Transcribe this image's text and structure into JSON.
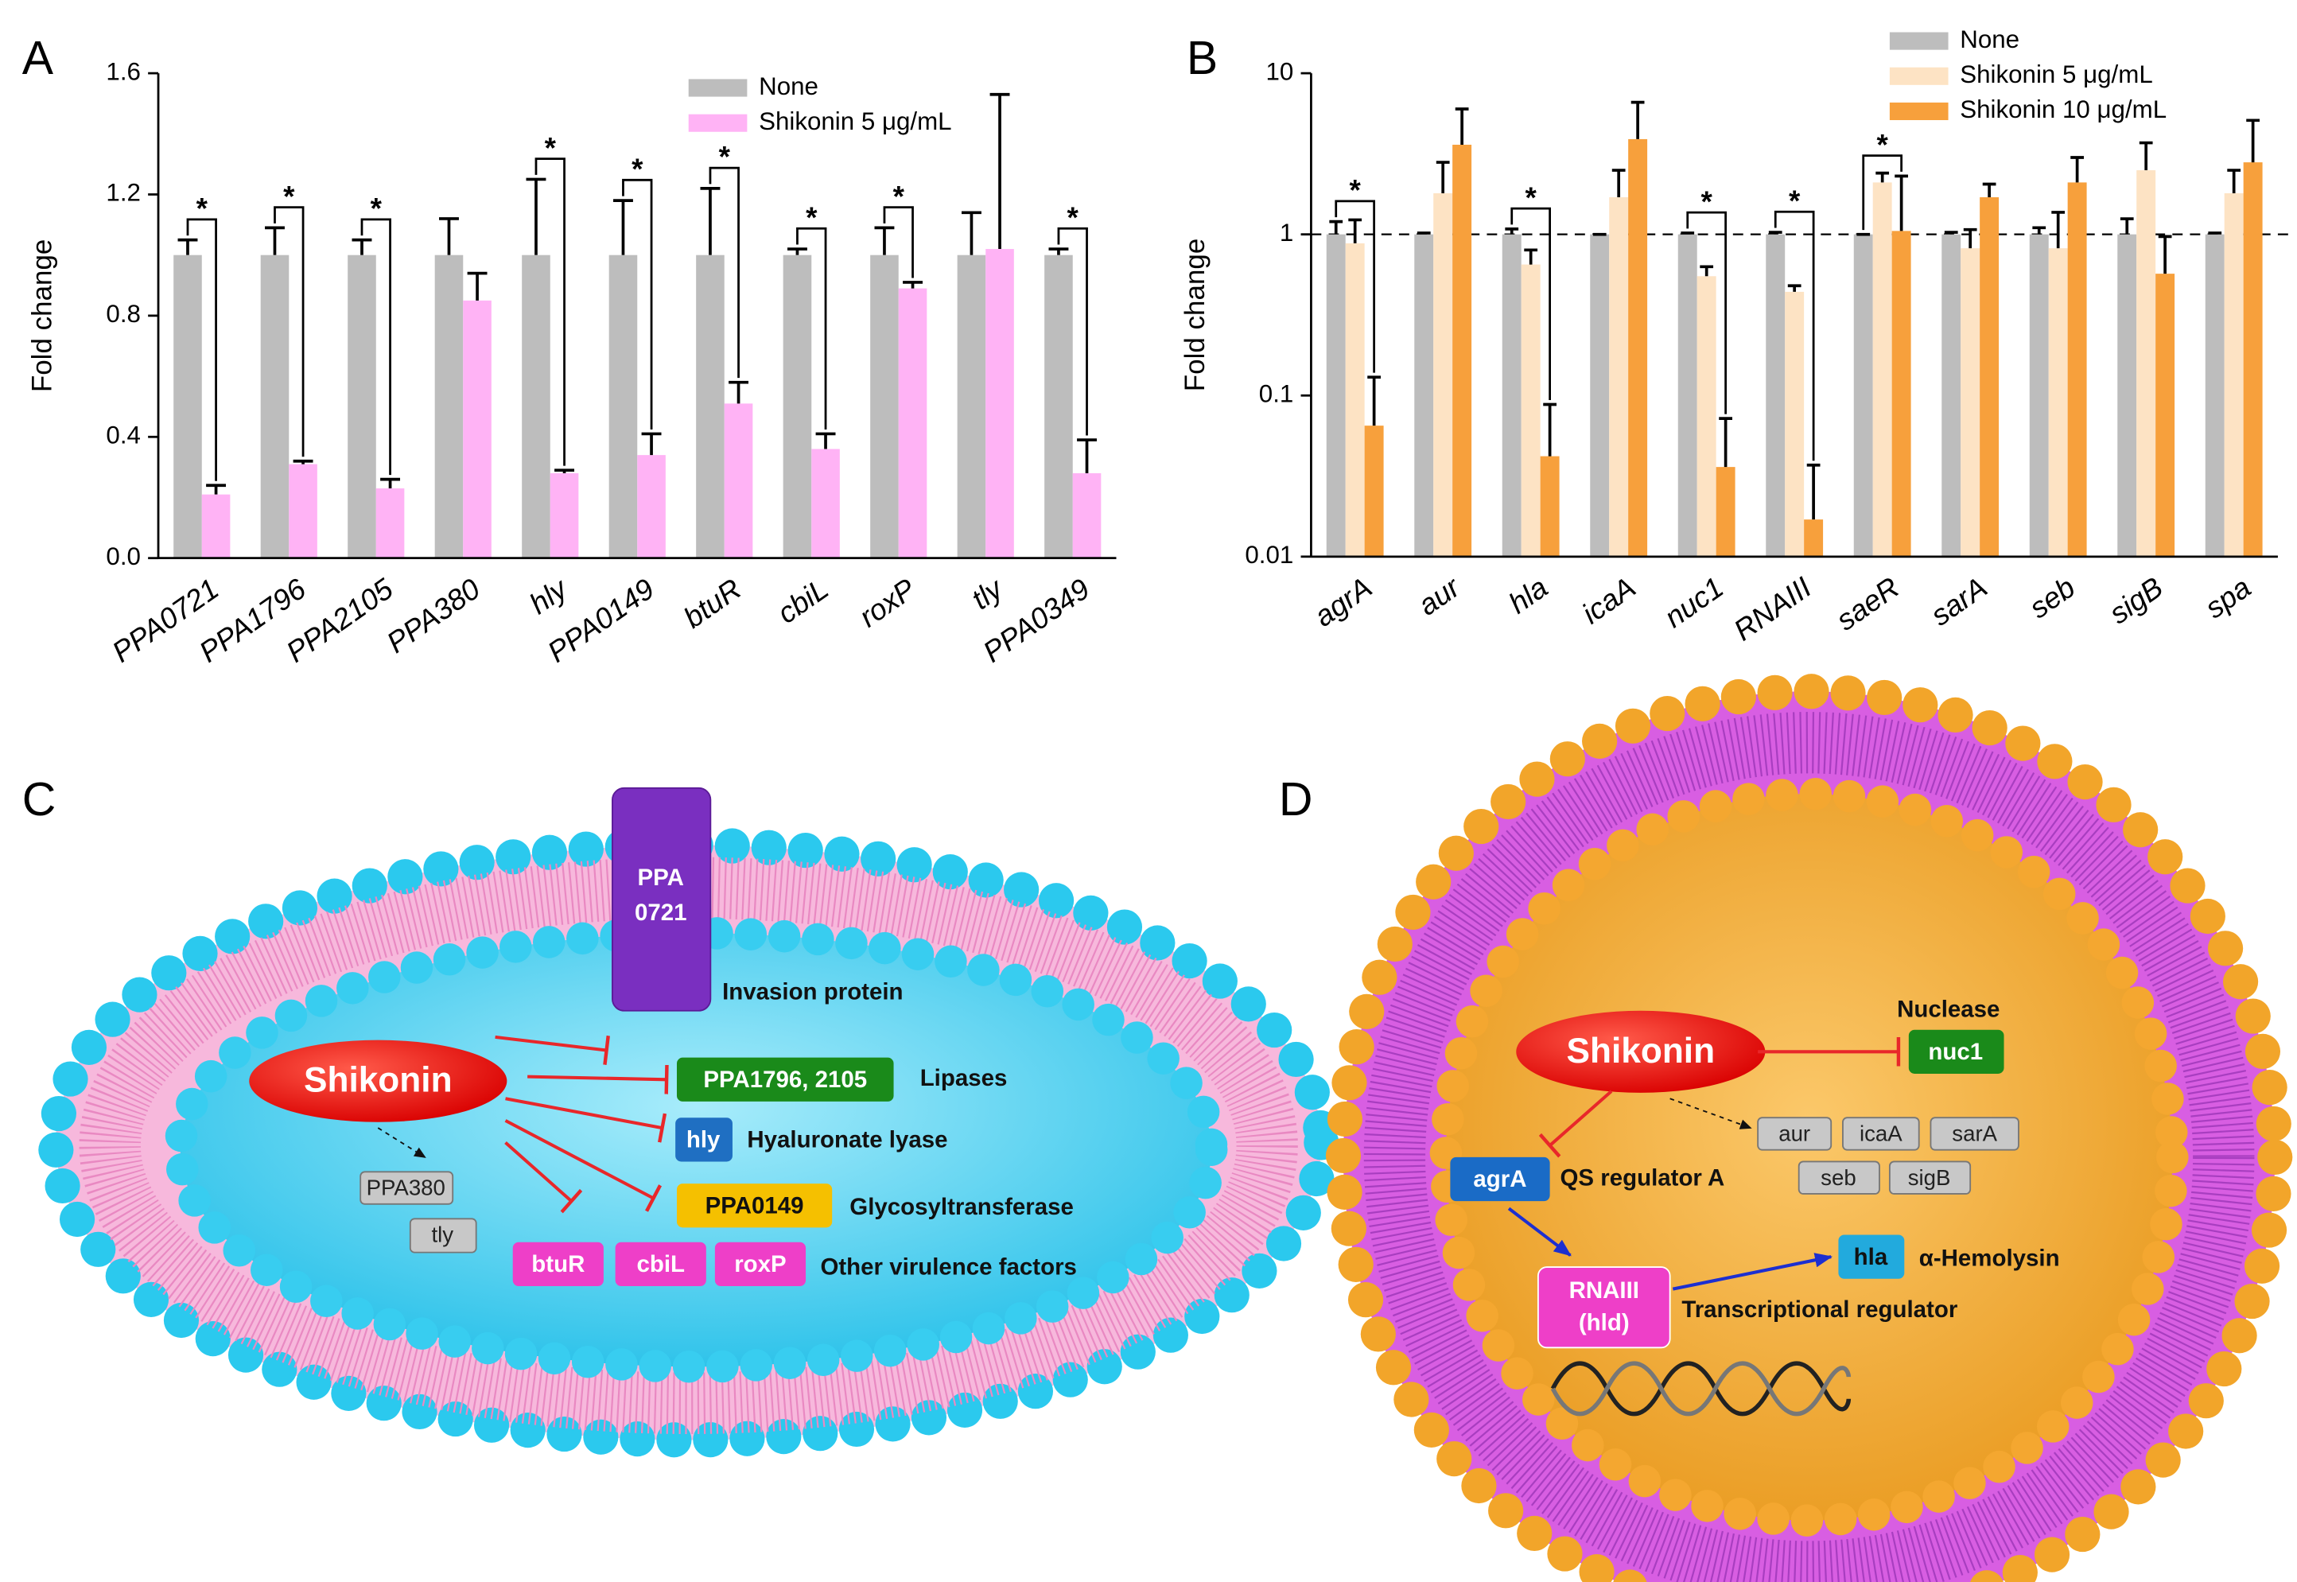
{
  "chart_data": [
    {
      "type": "bar",
      "panel": "A",
      "ylabel": "Fold change",
      "categories": [
        "PPA0721",
        "PPA1796",
        "PPA2105",
        "PPA380",
        "hly",
        "PPA0149",
        "btuR",
        "cbiL",
        "roxP",
        "tly",
        "PPA0349"
      ],
      "series": [
        {
          "name": "None",
          "color": "#bdbdbd",
          "values": [
            1,
            1,
            1,
            1,
            1,
            1,
            1,
            1,
            1,
            1,
            1
          ],
          "errors": [
            0.05,
            0.09,
            0.05,
            0.12,
            0.25,
            0.18,
            0.22,
            0.02,
            0.09,
            0.14,
            0.02
          ]
        },
        {
          "name": "Shikonin 5 μg/mL",
          "color": "#ffb3f5",
          "values": [
            0.21,
            0.31,
            0.23,
            0.85,
            0.28,
            0.34,
            0.51,
            0.36,
            0.89,
            1.02,
            0.28
          ],
          "errors": [
            0.03,
            0.01,
            0.03,
            0.09,
            0.01,
            0.07,
            0.07,
            0.05,
            0.02,
            0.51,
            0.11
          ]
        }
      ],
      "significance_labels": [
        "*",
        "*",
        "*",
        null,
        "*",
        "*",
        "*",
        "*",
        "*",
        null,
        "*"
      ],
      "ylim": [
        0,
        1.6
      ],
      "yticks": [
        {
          "value": 0,
          "label": "0.0"
        },
        0.4,
        0.8,
        1.2,
        1.6
      ],
      "log_y": false,
      "grid": false,
      "legend": "upper right"
    },
    {
      "type": "bar",
      "panel": "B",
      "ylabel": "Fold change",
      "categories": [
        "agrA",
        "aur",
        "hla",
        "icaA",
        "nuc1",
        "RNAIII",
        "saeR",
        "sarA",
        "seb",
        "sigB",
        "spa"
      ],
      "series": [
        {
          "name": "None",
          "color": "#bdbdbd",
          "values": [
            1,
            1,
            1,
            1,
            1,
            1,
            1,
            1,
            1,
            1,
            1
          ],
          "errors": [
            0.2,
            0.02,
            0.08,
            0,
            0.02,
            0.03,
            0,
            0.03,
            0.1,
            0.25,
            0.02
          ]
        },
        {
          "name": "Shikonin 5 μg/mL",
          "color": "#fde3c4",
          "values": [
            0.88,
            1.8,
            0.65,
            1.7,
            0.55,
            0.44,
            2.1,
            0.82,
            0.82,
            2.5,
            1.8
          ],
          "errors": [
            0.35,
            1.0,
            0.15,
            0.8,
            0.08,
            0.04,
            0.3,
            0.25,
            0.55,
            1.2,
            0.7
          ]
        },
        {
          "name": "Shikonin 10 μg/mL",
          "color": "#f7a03c",
          "values": [
            0.065,
            3.6,
            0.042,
            3.9,
            0.036,
            0.017,
            1.05,
            1.7,
            2.1,
            0.57,
            2.8
          ],
          "errors": [
            0.065,
            2.4,
            0.046,
            2.7,
            0.036,
            0.02,
            1.25,
            0.35,
            0.9,
            0.4,
            2.3
          ]
        }
      ],
      "significance_labels": [
        "*",
        null,
        "*",
        null,
        "*",
        "*",
        "*",
        null,
        null,
        null,
        null
      ],
      "reference_line": 1,
      "ylim": [
        0.01,
        10
      ],
      "yticks": [
        0.01,
        0.1,
        1,
        10
      ],
      "log_y": true,
      "grid": false,
      "legend": "upper right"
    }
  ],
  "diagram_c": {
    "panel": "C",
    "drug": "Shikonin",
    "invasion": {
      "label": [
        "PPA",
        "0721"
      ],
      "function": "Invasion protein"
    },
    "lipases": {
      "label": "PPA1796, 2105",
      "function": "Lipases"
    },
    "lyase": {
      "label": "hly",
      "function": "Hyaluronate lyase"
    },
    "transferase": {
      "label": "PPA0149",
      "function": "Glycosyltransferase"
    },
    "others": {
      "labels": [
        "btuR",
        "cbiL",
        "roxP"
      ],
      "function": "Other virulence factors"
    },
    "unaffected": [
      "PPA380",
      "tly"
    ]
  },
  "diagram_d": {
    "panel": "D",
    "drug": "Shikonin",
    "nuclease": {
      "label": "nuc1",
      "function": "Nuclease"
    },
    "unaffected": [
      "aur",
      "icaA",
      "sarA",
      "seb",
      "sigB"
    ],
    "regulator": {
      "label": "agrA",
      "function": "QS regulator A"
    },
    "rnaiii": {
      "label": [
        "RNAIII",
        "(hld)"
      ],
      "function": "Transcriptional regulator"
    },
    "hemolysin": {
      "label": "hla",
      "function": "α-Hemolysin"
    }
  }
}
